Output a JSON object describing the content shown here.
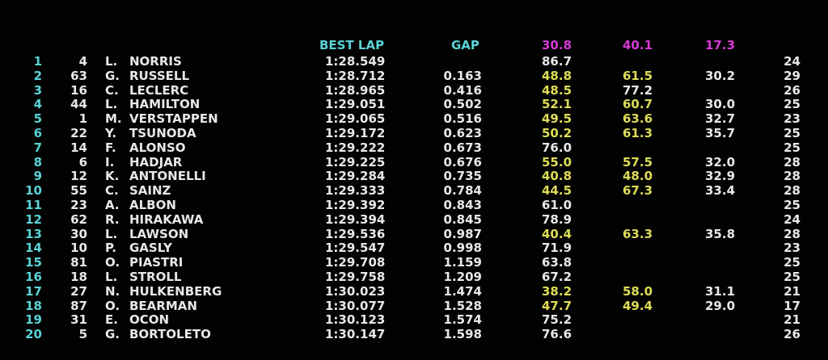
{
  "headers": {
    "best_lap": "BEST LAP",
    "gap": "GAP",
    "sector1": "30.8",
    "sector2": "40.1",
    "sector3": "17.3"
  },
  "colors": {
    "header_cyan": "#5ad3d6",
    "header_magenta": "#d63ad6",
    "personal_best_yellow": "#dedc55",
    "default_white": "#e8e8e8",
    "background": "#000000"
  },
  "rows": [
    {
      "pos": "1",
      "num": "4",
      "ini": "L.",
      "name": "NORRIS",
      "best": "1:28.549",
      "gap": "",
      "s1": "86.7",
      "s1c": "white",
      "s2": "",
      "s2c": "white",
      "s3": "",
      "laps": "24"
    },
    {
      "pos": "2",
      "num": "63",
      "ini": "G.",
      "name": "RUSSELL",
      "best": "1:28.712",
      "gap": "0.163",
      "s1": "48.8",
      "s1c": "yellow",
      "s2": "61.5",
      "s2c": "yellow",
      "s3": "30.2",
      "laps": "29"
    },
    {
      "pos": "3",
      "num": "16",
      "ini": "C.",
      "name": "LECLERC",
      "best": "1:28.965",
      "gap": "0.416",
      "s1": "48.5",
      "s1c": "yellow",
      "s2": "77.2",
      "s2c": "white",
      "s3": "",
      "laps": "26"
    },
    {
      "pos": "4",
      "num": "44",
      "ini": "L.",
      "name": "HAMILTON",
      "best": "1:29.051",
      "gap": "0.502",
      "s1": "52.1",
      "s1c": "yellow",
      "s2": "60.7",
      "s2c": "yellow",
      "s3": "30.0",
      "laps": "25"
    },
    {
      "pos": "5",
      "num": "1",
      "ini": "M.",
      "name": "VERSTAPPEN",
      "best": "1:29.065",
      "gap": "0.516",
      "s1": "49.5",
      "s1c": "yellow",
      "s2": "63.6",
      "s2c": "yellow",
      "s3": "32.7",
      "laps": "23"
    },
    {
      "pos": "6",
      "num": "22",
      "ini": "Y.",
      "name": "TSUNODA",
      "best": "1:29.172",
      "gap": "0.623",
      "s1": "50.2",
      "s1c": "yellow",
      "s2": "61.3",
      "s2c": "yellow",
      "s3": "35.7",
      "laps": "25"
    },
    {
      "pos": "7",
      "num": "14",
      "ini": "F.",
      "name": "ALONSO",
      "best": "1:29.222",
      "gap": "0.673",
      "s1": "76.0",
      "s1c": "white",
      "s2": "",
      "s2c": "white",
      "s3": "",
      "laps": "25"
    },
    {
      "pos": "8",
      "num": "6",
      "ini": "I.",
      "name": "HADJAR",
      "best": "1:29.225",
      "gap": "0.676",
      "s1": "55.0",
      "s1c": "yellow",
      "s2": "57.5",
      "s2c": "yellow",
      "s3": "32.0",
      "laps": "28"
    },
    {
      "pos": "9",
      "num": "12",
      "ini": "K.",
      "name": "ANTONELLI",
      "best": "1:29.284",
      "gap": "0.735",
      "s1": "40.8",
      "s1c": "yellow",
      "s2": "48.0",
      "s2c": "yellow",
      "s3": "32.9",
      "laps": "28"
    },
    {
      "pos": "10",
      "num": "55",
      "ini": "C.",
      "name": "SAINZ",
      "best": "1:29.333",
      "gap": "0.784",
      "s1": "44.5",
      "s1c": "yellow",
      "s2": "67.3",
      "s2c": "yellow",
      "s3": "33.4",
      "laps": "28"
    },
    {
      "pos": "11",
      "num": "23",
      "ini": "A.",
      "name": "ALBON",
      "best": "1:29.392",
      "gap": "0.843",
      "s1": "61.0",
      "s1c": "white",
      "s2": "",
      "s2c": "white",
      "s3": "",
      "laps": "25"
    },
    {
      "pos": "12",
      "num": "62",
      "ini": "R.",
      "name": "HIRAKAWA",
      "best": "1:29.394",
      "gap": "0.845",
      "s1": "78.9",
      "s1c": "white",
      "s2": "",
      "s2c": "white",
      "s3": "",
      "laps": "24"
    },
    {
      "pos": "13",
      "num": "30",
      "ini": "L.",
      "name": "LAWSON",
      "best": "1:29.536",
      "gap": "0.987",
      "s1": "40.4",
      "s1c": "yellow",
      "s2": "63.3",
      "s2c": "yellow",
      "s3": "35.8",
      "laps": "28"
    },
    {
      "pos": "14",
      "num": "10",
      "ini": "P.",
      "name": "GASLY",
      "best": "1:29.547",
      "gap": "0.998",
      "s1": "71.9",
      "s1c": "white",
      "s2": "",
      "s2c": "white",
      "s3": "",
      "laps": "23"
    },
    {
      "pos": "15",
      "num": "81",
      "ini": "O.",
      "name": "PIASTRI",
      "best": "1:29.708",
      "gap": "1.159",
      "s1": "63.8",
      "s1c": "white",
      "s2": "",
      "s2c": "white",
      "s3": "",
      "laps": "25"
    },
    {
      "pos": "16",
      "num": "18",
      "ini": "L.",
      "name": "STROLL",
      "best": "1:29.758",
      "gap": "1.209",
      "s1": "67.2",
      "s1c": "white",
      "s2": "",
      "s2c": "white",
      "s3": "",
      "laps": "25"
    },
    {
      "pos": "17",
      "num": "27",
      "ini": "N.",
      "name": "HULKENBERG",
      "best": "1:30.023",
      "gap": "1.474",
      "s1": "38.2",
      "s1c": "yellow",
      "s2": "58.0",
      "s2c": "yellow",
      "s3": "31.1",
      "laps": "21"
    },
    {
      "pos": "18",
      "num": "87",
      "ini": "O.",
      "name": "BEARMAN",
      "best": "1:30.077",
      "gap": "1.528",
      "s1": "47.7",
      "s1c": "yellow",
      "s2": "49.4",
      "s2c": "yellow",
      "s3": "29.0",
      "laps": "17"
    },
    {
      "pos": "19",
      "num": "31",
      "ini": "E.",
      "name": "OCON",
      "best": "1:30.123",
      "gap": "1.574",
      "s1": "75.2",
      "s1c": "white",
      "s2": "",
      "s2c": "white",
      "s3": "",
      "laps": "21"
    },
    {
      "pos": "20",
      "num": "5",
      "ini": "G.",
      "name": "BORTOLETO",
      "best": "1:30.147",
      "gap": "1.598",
      "s1": "76.6",
      "s1c": "white",
      "s2": "",
      "s2c": "white",
      "s3": "",
      "laps": "26"
    }
  ]
}
